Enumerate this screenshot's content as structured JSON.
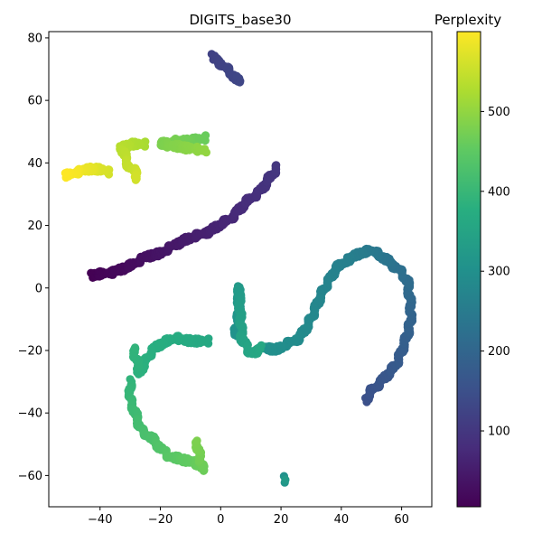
{
  "chart_data": {
    "type": "scatter",
    "title": "DIGITS_base30",
    "xlabel": "",
    "ylabel": "",
    "xlim": [
      -57,
      70
    ],
    "ylim": [
      -70,
      82
    ],
    "xticks": [
      -40,
      -20,
      0,
      20,
      40,
      60
    ],
    "yticks": [
      -60,
      -40,
      -20,
      0,
      20,
      40,
      60,
      80
    ],
    "grid": false,
    "colormap": "viridis",
    "colorbar": {
      "label": "Perplexity",
      "range": [
        5,
        600
      ],
      "ticks": [
        100,
        200,
        300,
        400,
        500
      ]
    },
    "curves": [
      {
        "name": "",
        "c_range": [
          5,
          100
        ],
        "points": [
          [
            -43,
            4
          ],
          [
            -36,
            5
          ],
          [
            -30,
            7
          ],
          [
            -25,
            10
          ],
          [
            -20,
            11
          ],
          [
            -15,
            14
          ],
          [
            -10,
            16
          ],
          [
            -4,
            18
          ],
          [
            3,
            22
          ],
          [
            8,
            27
          ],
          [
            13,
            31
          ],
          [
            17,
            36
          ],
          [
            19,
            39
          ]
        ]
      },
      {
        "name": "",
        "c_range": [
          120,
          130
        ],
        "points": [
          [
            -3,
            74
          ],
          [
            0,
            72
          ],
          [
            3,
            69
          ],
          [
            6,
            66
          ]
        ]
      },
      {
        "name": "",
        "c_range": [
          150,
          200
        ],
        "points": [
          [
            48,
            -36
          ],
          [
            50,
            -33
          ],
          [
            54,
            -29
          ],
          [
            58,
            -25
          ],
          [
            60,
            -20
          ],
          [
            62,
            -15
          ],
          [
            63,
            -10
          ],
          [
            63,
            -5
          ]
        ]
      },
      {
        "name": "",
        "c_range": [
          200,
          260
        ],
        "points": [
          [
            63,
            -5
          ],
          [
            62,
            2
          ],
          [
            59,
            6
          ],
          [
            55,
            9
          ],
          [
            50,
            12
          ],
          [
            46,
            11
          ],
          [
            42,
            9
          ]
        ]
      },
      {
        "name": "",
        "c_range": [
          260,
          300
        ],
        "points": [
          [
            42,
            9
          ],
          [
            38,
            6
          ],
          [
            35,
            1
          ],
          [
            32,
            -5
          ],
          [
            29,
            -12
          ],
          [
            26,
            -16
          ],
          [
            22,
            -18
          ],
          [
            18,
            -20
          ],
          [
            14,
            -19
          ]
        ]
      },
      {
        "name": "",
        "c_range": [
          305,
          325
        ],
        "points": [
          [
            21,
            -61
          ],
          [
            21,
            -62
          ]
        ]
      },
      {
        "name": "",
        "c_range": [
          300,
          360
        ],
        "points": [
          [
            7,
            -17
          ],
          [
            5,
            -14
          ],
          [
            6,
            -8
          ],
          [
            6,
            -3
          ],
          [
            6,
            0
          ],
          [
            7,
            -16
          ],
          [
            10,
            -21
          ],
          [
            14,
            -19
          ]
        ]
      },
      {
        "name": "",
        "c_range": [
          360,
          390
        ],
        "points": [
          [
            -4,
            -17
          ],
          [
            -10,
            -17
          ],
          [
            -15,
            -16
          ],
          [
            -20,
            -18
          ],
          [
            -23,
            -20
          ],
          [
            -25,
            -24
          ],
          [
            -27,
            -27
          ],
          [
            -29,
            -19
          ]
        ]
      },
      {
        "name": "",
        "c_range": [
          390,
          480
        ],
        "points": [
          [
            -30,
            -30
          ],
          [
            -30,
            -36
          ],
          [
            -28,
            -41
          ],
          [
            -26,
            -46
          ],
          [
            -23,
            -48
          ],
          [
            -20,
            -51
          ],
          [
            -17,
            -54
          ],
          [
            -12,
            -55
          ],
          [
            -8,
            -56
          ],
          [
            -6,
            -58
          ],
          [
            -8,
            -49
          ]
        ]
      },
      {
        "name": "",
        "c_range": [
          460,
          500
        ],
        "points": [
          [
            -5,
            48
          ],
          [
            -10,
            47
          ],
          [
            -15,
            47
          ],
          [
            -20,
            46
          ],
          [
            -5,
            44
          ]
        ]
      },
      {
        "name": "",
        "c_range": [
          520,
          560
        ],
        "points": [
          [
            -25,
            46
          ],
          [
            -29,
            46
          ],
          [
            -33,
            45
          ],
          [
            -30,
            38
          ],
          [
            -27,
            37
          ],
          [
            -29,
            35
          ]
        ]
      },
      {
        "name": "",
        "c_range": [
          560,
          600
        ],
        "points": [
          [
            -37,
            37
          ],
          [
            -40,
            38
          ],
          [
            -44,
            38
          ],
          [
            -48,
            37
          ],
          [
            -51,
            36
          ]
        ]
      }
    ]
  }
}
